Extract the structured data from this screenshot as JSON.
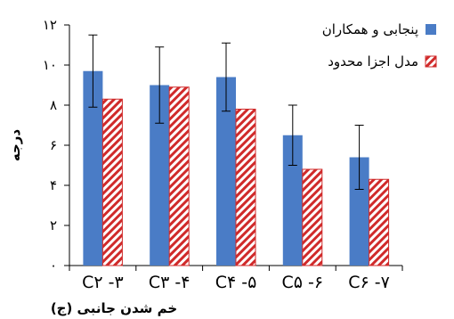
{
  "chart_data": {
    "type": "bar",
    "title": "",
    "xlabel": "خم شدن جانبی (ج)",
    "ylabel": "درجه",
    "ylim": [
      0,
      12
    ],
    "yticks": [
      {
        "value": 0,
        "label": "۰"
      },
      {
        "value": 2,
        "label": "۲"
      },
      {
        "value": 4,
        "label": "۴"
      },
      {
        "value": 6,
        "label": "۶"
      },
      {
        "value": 8,
        "label": "۸"
      },
      {
        "value": 10,
        "label": "۱۰"
      },
      {
        "value": 12,
        "label": "۱۲"
      }
    ],
    "categories": [
      "C۲ -۳",
      "C۳ -۴",
      "C۴ -۵",
      "C۵ -۶",
      "C۶ -۷"
    ],
    "series": [
      {
        "name": "پنجابی و همکاران",
        "color": "#4a7cc6",
        "pattern": "solid",
        "values": [
          9.7,
          9.0,
          9.4,
          6.5,
          5.4
        ],
        "error": [
          1.8,
          1.9,
          1.7,
          1.5,
          1.6
        ]
      },
      {
        "name": "مدل اجزا محدود",
        "color": "#d02a2a",
        "pattern": "hatched",
        "values": [
          8.3,
          8.9,
          7.8,
          4.8,
          4.3
        ]
      }
    ],
    "grid": false,
    "legend_position": "top-right"
  }
}
